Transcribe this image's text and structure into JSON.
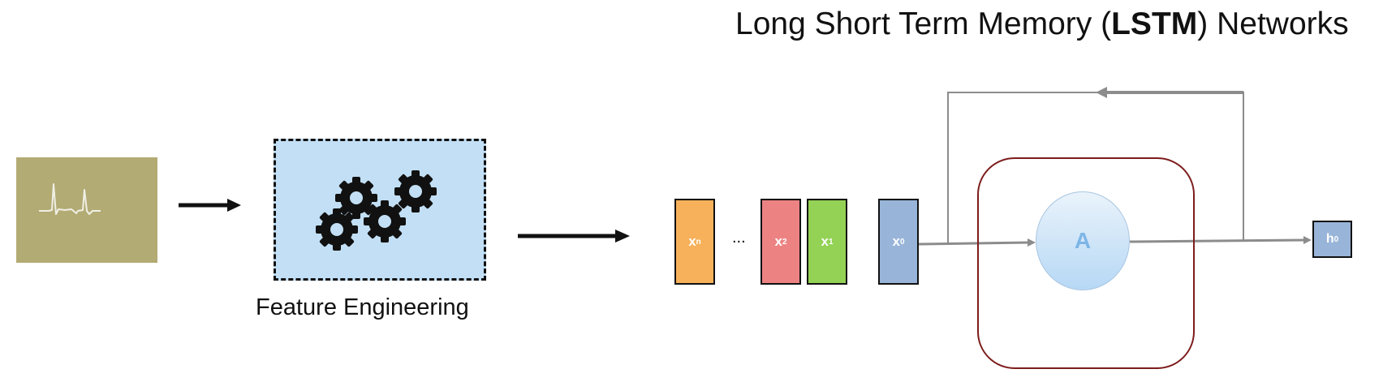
{
  "title": {
    "pre": "Long Short Term Memory (",
    "bold": "LSTM",
    "post": ") Networks"
  },
  "feature_engineering": {
    "label": "Feature Engineering",
    "icon": "gears-icon",
    "color": "#c2dff5"
  },
  "signal": {
    "icon": "ecg-signal-icon",
    "color": "#b3ab74"
  },
  "sequence": {
    "items": [
      {
        "name": "x",
        "sub": "n",
        "color": "#f6b15a"
      },
      {
        "name": "x",
        "sub": "2",
        "color": "#ec8282"
      },
      {
        "name": "x",
        "sub": "1",
        "color": "#93d254"
      },
      {
        "name": "x",
        "sub": "0",
        "color": "#98b4d8"
      }
    ],
    "ellipsis": "..."
  },
  "cell": {
    "label": "A",
    "border_color": "#7d1c1c"
  },
  "output": {
    "name": "h",
    "sub": "0",
    "color": "#98b4d8"
  }
}
